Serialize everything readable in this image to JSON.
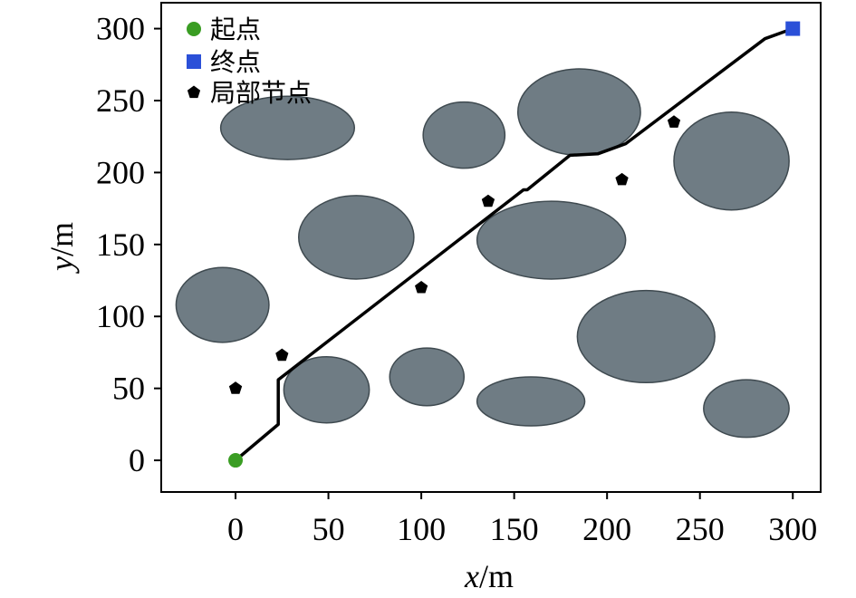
{
  "chart_data": {
    "type": "scatter",
    "xlabel_var": "x",
    "xlabel_unit": "/m",
    "ylabel_var": "y",
    "ylabel_unit": "/m",
    "xlim": [
      -40,
      315
    ],
    "ylim": [
      -22,
      318
    ],
    "xticks": [
      0,
      50,
      100,
      150,
      200,
      250,
      300
    ],
    "yticks": [
      0,
      50,
      100,
      150,
      200,
      250,
      300
    ],
    "grid": false,
    "legend_position": "top-left",
    "legend": [
      {
        "label": "起点",
        "marker": "circle",
        "color": "#3a9d23"
      },
      {
        "label": "终点",
        "marker": "square",
        "color": "#2b50d8"
      },
      {
        "label": "局部节点",
        "marker": "pentagon",
        "color": "#000000"
      }
    ],
    "start": {
      "x": 0,
      "y": 0
    },
    "goal": {
      "x": 300,
      "y": 300
    },
    "local_nodes": [
      {
        "x": 0,
        "y": 50
      },
      {
        "x": 25,
        "y": 73
      },
      {
        "x": 100,
        "y": 120
      },
      {
        "x": 136,
        "y": 180
      },
      {
        "x": 208,
        "y": 195
      },
      {
        "x": 236,
        "y": 235
      }
    ],
    "path": [
      [
        0,
        0
      ],
      [
        23,
        25
      ],
      [
        23,
        56
      ],
      [
        155,
        188
      ],
      [
        157,
        188
      ],
      [
        180,
        212
      ],
      [
        195,
        213
      ],
      [
        210,
        220
      ],
      [
        285,
        293
      ],
      [
        300,
        300
      ]
    ],
    "obstacles": [
      {
        "cx": 28,
        "cy": 231,
        "rx": 36,
        "ry": 22
      },
      {
        "cx": 123,
        "cy": 226,
        "rx": 22,
        "ry": 23
      },
      {
        "cx": 185,
        "cy": 242,
        "rx": 33,
        "ry": 30
      },
      {
        "cx": 267,
        "cy": 208,
        "rx": 31,
        "ry": 34
      },
      {
        "cx": 65,
        "cy": 155,
        "rx": 31,
        "ry": 29
      },
      {
        "cx": 170,
        "cy": 153,
        "rx": 40,
        "ry": 27
      },
      {
        "cx": -7,
        "cy": 108,
        "rx": 25,
        "ry": 26
      },
      {
        "cx": 49,
        "cy": 49,
        "rx": 23,
        "ry": 23
      },
      {
        "cx": 103,
        "cy": 58,
        "rx": 20,
        "ry": 20
      },
      {
        "cx": 159,
        "cy": 41,
        "rx": 29,
        "ry": 17
      },
      {
        "cx": 221,
        "cy": 86,
        "rx": 37,
        "ry": 32
      },
      {
        "cx": 275,
        "cy": 36,
        "rx": 23,
        "ry": 20
      }
    ],
    "colors": {
      "obstacle_fill": "#6f7c84",
      "obstacle_stroke": "#3f4a50",
      "path": "#000000",
      "axis": "#000000"
    }
  }
}
